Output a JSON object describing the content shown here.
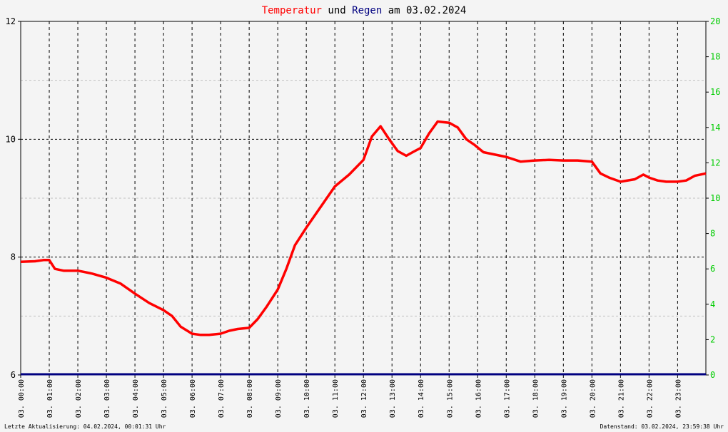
{
  "title": {
    "part1": "Temperatur",
    "part2": " und ",
    "part3": "Regen",
    "part4": " am 03.02.2024"
  },
  "footer": {
    "left": "Letzte Aktualisierung: 04.02.2024, 00:01:31 Uhr",
    "right": "Datenstand: 03.02.2024, 23:59:38 Uhr"
  },
  "colors": {
    "background": "#f4f4f4",
    "temperature": "#ff0000",
    "rain": "#000080",
    "right_axis_labels": "#00cc00",
    "grid": "#000000",
    "minor_grid": "#c0c0c0"
  },
  "chart_data": {
    "type": "line",
    "x_unit": "hours",
    "xlim": [
      0,
      23.99
    ],
    "x_tick_labels": [
      "03. 00:00",
      "03. 01:00",
      "03. 02:00",
      "03. 03:00",
      "03. 04:00",
      "03. 05:00",
      "03. 06:00",
      "03. 07:00",
      "03. 08:00",
      "03. 09:00",
      "03. 10:00",
      "03. 11:00",
      "03. 12:00",
      "03. 13:00",
      "03. 14:00",
      "03. 15:00",
      "03. 16:00",
      "03. 17:00",
      "03. 18:00",
      "03. 19:00",
      "03. 20:00",
      "03. 21:00",
      "03. 22:00",
      "03. 23:00"
    ],
    "y_left": {
      "ylim": [
        6,
        12
      ],
      "ticks": [
        "6",
        "8",
        "10",
        "12"
      ]
    },
    "y_right": {
      "ylim": [
        0,
        20
      ],
      "ticks": [
        "0",
        "2",
        "4",
        "6",
        "8",
        "10",
        "12",
        "14",
        "16",
        "18",
        "20"
      ]
    },
    "grid": true,
    "series": [
      {
        "name": "Temperatur",
        "axis": "left",
        "x": [
          0,
          0.5,
          0.8,
          1.0,
          1.2,
          1.5,
          2.0,
          2.5,
          3.0,
          3.5,
          4.0,
          4.5,
          5.0,
          5.3,
          5.6,
          6.0,
          6.3,
          6.6,
          7.0,
          7.3,
          7.6,
          8.0,
          8.3,
          8.6,
          9.0,
          9.3,
          9.6,
          10.0,
          10.5,
          11.0,
          11.5,
          12.0,
          12.3,
          12.6,
          12.9,
          13.2,
          13.5,
          13.8,
          14.0,
          14.3,
          14.6,
          15.0,
          15.3,
          15.6,
          15.9,
          16.2,
          16.5,
          17.0,
          17.5,
          18.0,
          18.5,
          19.0,
          19.5,
          20.0,
          20.3,
          20.6,
          21.0,
          21.5,
          21.8,
          22.0,
          22.3,
          22.6,
          23.0,
          23.3,
          23.6,
          23.99
        ],
        "y": [
          7.92,
          7.93,
          7.95,
          7.95,
          7.8,
          7.77,
          7.77,
          7.72,
          7.65,
          7.55,
          7.38,
          7.22,
          7.1,
          7.0,
          6.82,
          6.7,
          6.68,
          6.68,
          6.7,
          6.75,
          6.78,
          6.8,
          6.95,
          7.15,
          7.45,
          7.8,
          8.2,
          8.5,
          8.85,
          9.2,
          9.4,
          9.65,
          10.05,
          10.22,
          10.0,
          9.8,
          9.72,
          9.8,
          9.85,
          10.1,
          10.3,
          10.28,
          10.2,
          10.0,
          9.9,
          9.78,
          9.75,
          9.7,
          9.62,
          9.64,
          9.65,
          9.64,
          9.64,
          9.62,
          9.42,
          9.35,
          9.28,
          9.32,
          9.4,
          9.35,
          9.3,
          9.28,
          9.28,
          9.3,
          9.38,
          9.42
        ]
      },
      {
        "name": "Regen",
        "axis": "right",
        "x": [
          0,
          23.99
        ],
        "y": [
          0,
          0
        ]
      }
    ]
  }
}
